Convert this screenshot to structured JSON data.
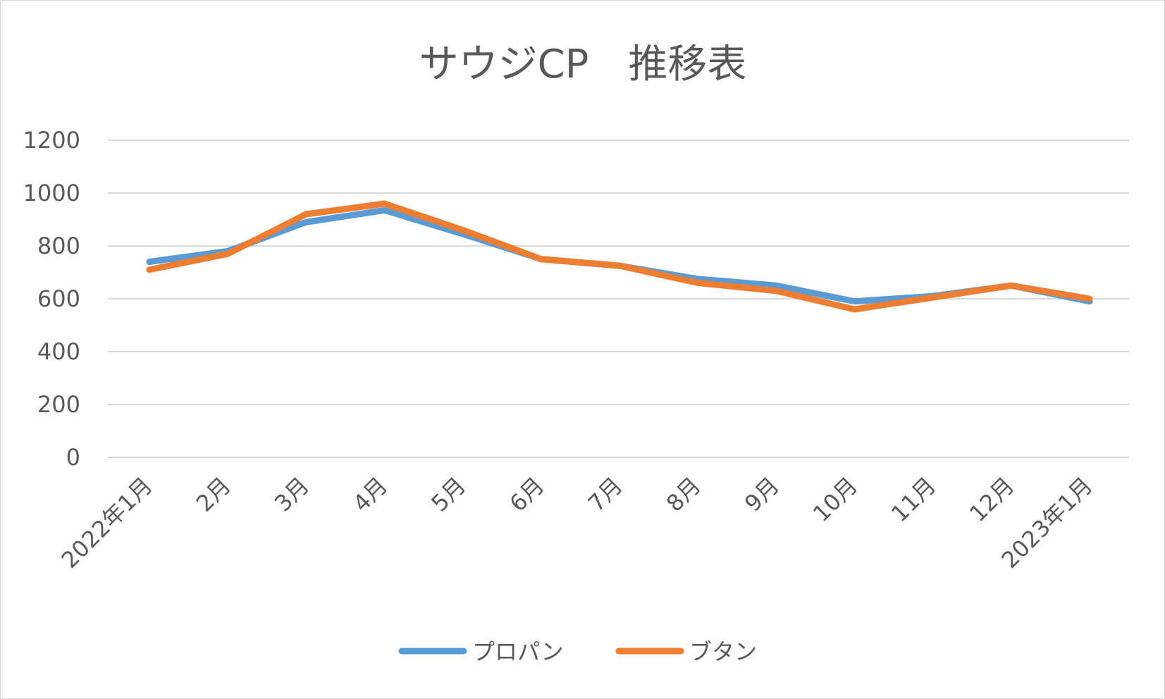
{
  "chart_data": {
    "type": "line",
    "title": "サウジCP　推移表",
    "xlabel": "",
    "ylabel": "",
    "categories": [
      "2022年1月",
      "2月",
      "3月",
      "4月",
      "5月",
      "6月",
      "7月",
      "8月",
      "9月",
      "10月",
      "11月",
      "12月",
      "2023年1月"
    ],
    "ylim": [
      0,
      1200
    ],
    "yticks": [
      0,
      200,
      400,
      600,
      800,
      1000,
      1200
    ],
    "grid": true,
    "legend_position": "bottom",
    "series": [
      {
        "name": "プロパン",
        "color": "#5B9BD5",
        "values": [
          740,
          780,
          890,
          935,
          845,
          750,
          725,
          675,
          650,
          590,
          610,
          650,
          590
        ]
      },
      {
        "name": "ブタン",
        "color": "#ED7D31",
        "values": [
          710,
          770,
          920,
          960,
          860,
          750,
          725,
          660,
          630,
          560,
          605,
          650,
          600
        ]
      }
    ]
  }
}
